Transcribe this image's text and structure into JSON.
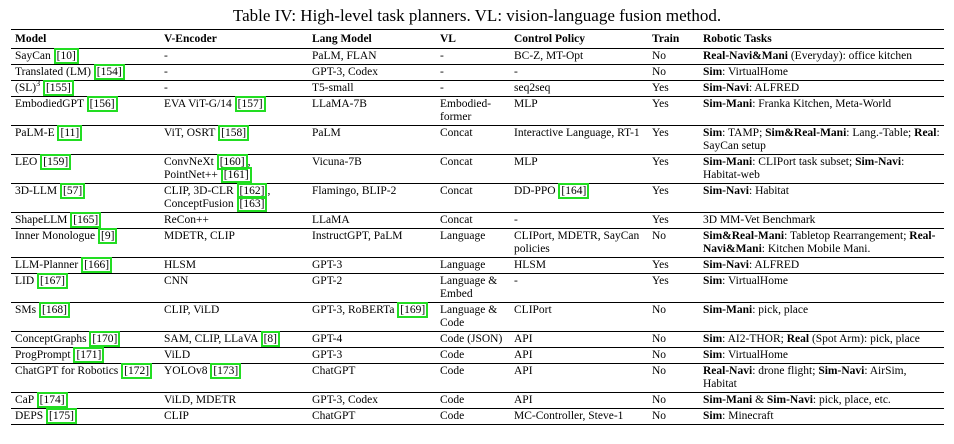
{
  "caption": "Table IV: High-level task planners. VL: vision-language fusion method.",
  "columns": [
    "Model",
    "V-Encoder",
    "Lang Model",
    "VL",
    "Control Policy",
    "Train",
    "Robotic Tasks"
  ],
  "rows": [
    {
      "model": [
        {
          "t": "SayCan "
        },
        {
          "ref": "[10]"
        }
      ],
      "venc": [
        {
          "t": "-"
        }
      ],
      "lang": [
        {
          "t": "PaLM, FLAN"
        }
      ],
      "vl": [
        {
          "t": "-"
        }
      ],
      "ctrl": [
        {
          "t": "BC-Z, MT-Opt"
        }
      ],
      "train": "No",
      "tasks": [
        {
          "b": "Real-Navi&Mani"
        },
        {
          "t": " (Everyday): office kitchen"
        }
      ]
    },
    {
      "model": [
        {
          "t": "Translated (LM) "
        },
        {
          "ref": "[154]"
        }
      ],
      "venc": [
        {
          "t": "-"
        }
      ],
      "lang": [
        {
          "t": "GPT-3, Codex"
        }
      ],
      "vl": [
        {
          "t": "-"
        }
      ],
      "ctrl": [
        {
          "t": "-"
        }
      ],
      "train": "No",
      "tasks": [
        {
          "b": "Sim"
        },
        {
          "t": ": VirtualHome"
        }
      ]
    },
    {
      "model": [
        {
          "t": "(SL)"
        },
        {
          "sup": "3"
        },
        {
          "t": " "
        },
        {
          "ref": "[155]"
        }
      ],
      "venc": [
        {
          "t": "-"
        }
      ],
      "lang": [
        {
          "t": "T5-small"
        }
      ],
      "vl": [
        {
          "t": "-"
        }
      ],
      "ctrl": [
        {
          "t": "seq2seq"
        }
      ],
      "train": "Yes",
      "tasks": [
        {
          "b": "Sim-Navi"
        },
        {
          "t": ": ALFRED"
        }
      ]
    },
    {
      "model": [
        {
          "t": "EmbodiedGPT "
        },
        {
          "ref": "[156]"
        }
      ],
      "venc": [
        {
          "t": "EVA ViT-G/14 "
        },
        {
          "ref": "[157]"
        }
      ],
      "lang": [
        {
          "t": "LLaMA-7B"
        }
      ],
      "vl": [
        {
          "t": "Embodied-former"
        }
      ],
      "ctrl": [
        {
          "t": "MLP"
        }
      ],
      "train": "Yes",
      "tasks": [
        {
          "b": "Sim-Mani"
        },
        {
          "t": ": Franka Kitchen, Meta-World"
        }
      ]
    },
    {
      "model": [
        {
          "t": "PaLM-E "
        },
        {
          "ref": "[11]"
        }
      ],
      "venc": [
        {
          "t": "ViT, OSRT "
        },
        {
          "ref": "[158]"
        }
      ],
      "lang": [
        {
          "t": "PaLM"
        }
      ],
      "vl": [
        {
          "t": "Concat"
        }
      ],
      "ctrl": [
        {
          "t": "Interactive Language, RT-1"
        }
      ],
      "train": "Yes",
      "tasks": [
        {
          "b": "Sim"
        },
        {
          "t": ": TAMP; "
        },
        {
          "b": "Sim&Real-Mani"
        },
        {
          "t": ": Lang.-Table; "
        },
        {
          "b": "Real"
        },
        {
          "t": ": SayCan setup"
        }
      ]
    },
    {
      "model": [
        {
          "t": "LEO "
        },
        {
          "ref": "[159]"
        }
      ],
      "venc": [
        {
          "t": "ConvNeXt "
        },
        {
          "ref": "[160]"
        },
        {
          "t": ", PointNet++ "
        },
        {
          "ref": "[161]"
        }
      ],
      "lang": [
        {
          "t": "Vicuna-7B"
        }
      ],
      "vl": [
        {
          "t": "Concat"
        }
      ],
      "ctrl": [
        {
          "t": "MLP"
        }
      ],
      "train": "Yes",
      "tasks": [
        {
          "b": "Sim-Mani"
        },
        {
          "t": ": CLIPort task subset; "
        },
        {
          "b": "Sim-Navi"
        },
        {
          "t": ": Habitat-web"
        }
      ]
    },
    {
      "model": [
        {
          "t": "3D-LLM "
        },
        {
          "ref": "[57]"
        }
      ],
      "venc": [
        {
          "t": "CLIP, 3D-CLR "
        },
        {
          "ref": "[162]"
        },
        {
          "t": ", ConceptFusion "
        },
        {
          "ref": "[163]"
        }
      ],
      "lang": [
        {
          "t": "Flamingo, BLIP-2"
        }
      ],
      "vl": [
        {
          "t": "Concat"
        }
      ],
      "ctrl": [
        {
          "t": "DD-PPO "
        },
        {
          "ref": "[164]"
        }
      ],
      "train": "Yes",
      "tasks": [
        {
          "b": "Sim-Navi"
        },
        {
          "t": ": Habitat"
        }
      ]
    },
    {
      "model": [
        {
          "t": "ShapeLLM "
        },
        {
          "ref": "[165]"
        }
      ],
      "venc": [
        {
          "t": "ReCon++"
        }
      ],
      "lang": [
        {
          "t": "LLaMA"
        }
      ],
      "vl": [
        {
          "t": "Concat"
        }
      ],
      "ctrl": [
        {
          "t": "-"
        }
      ],
      "train": "Yes",
      "tasks": [
        {
          "t": "3D MM-Vet Benchmark"
        }
      ]
    },
    {
      "model": [
        {
          "t": "Inner Monologue "
        },
        {
          "ref": "[9]"
        }
      ],
      "venc": [
        {
          "t": "MDETR, CLIP"
        }
      ],
      "lang": [
        {
          "t": "InstructGPT, PaLM"
        }
      ],
      "vl": [
        {
          "t": "Language"
        }
      ],
      "ctrl": [
        {
          "t": "CLIPort, MDETR, SayCan policies"
        }
      ],
      "train": "No",
      "tasks": [
        {
          "b": "Sim&Real-Mani"
        },
        {
          "t": ": Tabletop Rearrangement; "
        },
        {
          "b": "Real-Navi&Mani"
        },
        {
          "t": ": Kitchen Mobile Mani."
        }
      ]
    },
    {
      "model": [
        {
          "t": "LLM-Planner "
        },
        {
          "ref": "[166]"
        }
      ],
      "venc": [
        {
          "t": "HLSM"
        }
      ],
      "lang": [
        {
          "t": "GPT-3"
        }
      ],
      "vl": [
        {
          "t": "Language"
        }
      ],
      "ctrl": [
        {
          "t": "HLSM"
        }
      ],
      "train": "Yes",
      "tasks": [
        {
          "b": "Sim-Navi"
        },
        {
          "t": ": ALFRED"
        }
      ]
    },
    {
      "model": [
        {
          "t": "LID "
        },
        {
          "ref": "[167]"
        }
      ],
      "venc": [
        {
          "t": "CNN"
        }
      ],
      "lang": [
        {
          "t": "GPT-2"
        }
      ],
      "vl": [
        {
          "t": "Language & Embed"
        }
      ],
      "ctrl": [
        {
          "t": "-"
        }
      ],
      "train": "Yes",
      "tasks": [
        {
          "b": "Sim"
        },
        {
          "t": ": VirtualHome"
        }
      ]
    },
    {
      "model": [
        {
          "t": "SMs "
        },
        {
          "ref": "[168]"
        }
      ],
      "venc": [
        {
          "t": "CLIP, ViLD"
        }
      ],
      "lang": [
        {
          "t": "GPT-3, RoBERTa "
        },
        {
          "ref": "[169]"
        }
      ],
      "vl": [
        {
          "t": "Language & Code"
        }
      ],
      "ctrl": [
        {
          "t": "CLIPort"
        }
      ],
      "train": "No",
      "tasks": [
        {
          "b": "Sim-Mani"
        },
        {
          "t": ": pick, place"
        }
      ]
    },
    {
      "model": [
        {
          "t": "ConceptGraphs "
        },
        {
          "ref": "[170]"
        }
      ],
      "venc": [
        {
          "t": "SAM, CLIP, LLaVA "
        },
        {
          "ref": "[8]"
        }
      ],
      "lang": [
        {
          "t": "GPT-4"
        }
      ],
      "vl": [
        {
          "t": "Code (JSON)"
        }
      ],
      "ctrl": [
        {
          "t": "API"
        }
      ],
      "train": "No",
      "tasks": [
        {
          "b": "Sim"
        },
        {
          "t": ": AI2-THOR; "
        },
        {
          "b": "Real"
        },
        {
          "t": " (Spot Arm): pick, place"
        }
      ]
    },
    {
      "model": [
        {
          "t": "ProgPrompt "
        },
        {
          "ref": "[171]"
        }
      ],
      "venc": [
        {
          "t": "ViLD"
        }
      ],
      "lang": [
        {
          "t": "GPT-3"
        }
      ],
      "vl": [
        {
          "t": "Code"
        }
      ],
      "ctrl": [
        {
          "t": "API"
        }
      ],
      "train": "No",
      "tasks": [
        {
          "b": "Sim"
        },
        {
          "t": ": VirtualHome"
        }
      ]
    },
    {
      "model": [
        {
          "t": "ChatGPT for Robotics "
        },
        {
          "ref": "[172]"
        }
      ],
      "venc": [
        {
          "t": "YOLOv8 "
        },
        {
          "ref": "[173]"
        }
      ],
      "lang": [
        {
          "t": "ChatGPT"
        }
      ],
      "vl": [
        {
          "t": "Code"
        }
      ],
      "ctrl": [
        {
          "t": "API"
        }
      ],
      "train": "No",
      "tasks": [
        {
          "b": "Real-Navi"
        },
        {
          "t": ": drone flight; "
        },
        {
          "b": "Sim-Navi"
        },
        {
          "t": ": AirSim, Habitat"
        }
      ]
    },
    {
      "model": [
        {
          "t": "CaP "
        },
        {
          "ref": "[174]"
        }
      ],
      "venc": [
        {
          "t": "ViLD, MDETR"
        }
      ],
      "lang": [
        {
          "t": "GPT-3, Codex"
        }
      ],
      "vl": [
        {
          "t": "Code"
        }
      ],
      "ctrl": [
        {
          "t": "API"
        }
      ],
      "train": "No",
      "tasks": [
        {
          "b": "Sim-Mani"
        },
        {
          "t": " & "
        },
        {
          "b": "Sim-Navi"
        },
        {
          "t": ": pick, place, etc."
        }
      ]
    },
    {
      "model": [
        {
          "t": "DEPS "
        },
        {
          "ref": "[175]"
        }
      ],
      "venc": [
        {
          "t": "CLIP"
        }
      ],
      "lang": [
        {
          "t": "ChatGPT"
        }
      ],
      "vl": [
        {
          "t": "Code"
        }
      ],
      "ctrl": [
        {
          "t": "MC-Controller, Steve-1"
        }
      ],
      "train": "No",
      "tasks": [
        {
          "b": "Sim"
        },
        {
          "t": ": Minecraft"
        }
      ]
    }
  ]
}
